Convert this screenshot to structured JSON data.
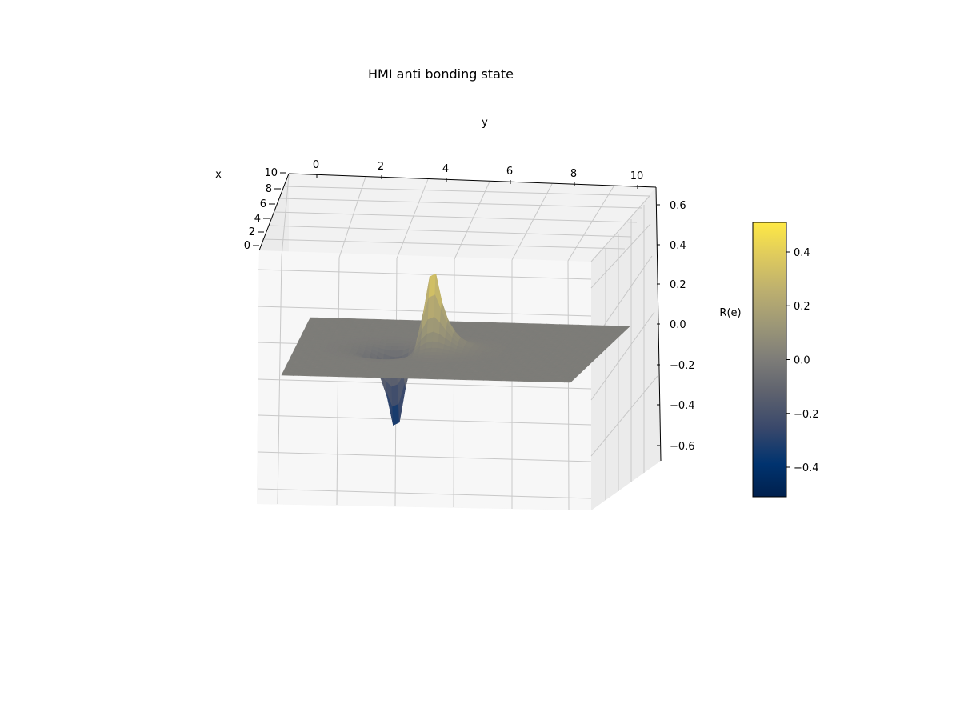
{
  "chart_data": {
    "type": "surface3d",
    "title": "HMI anti bonding state",
    "xlabel": "x",
    "ylabel": "y",
    "zlabel": "",
    "colorbar_label": "R(e)",
    "colormap": "cividis",
    "xlim": [
      0,
      10
    ],
    "ylim": [
      0,
      10
    ],
    "zlim": [
      -0.65,
      0.65
    ],
    "x_ticks": [
      "0",
      "2",
      "4",
      "6",
      "8",
      "10"
    ],
    "y_ticks": [
      "0",
      "2",
      "4",
      "6",
      "8",
      "10"
    ],
    "z_ticks": [
      "0.6",
      "0.4",
      "0.2",
      "0.0",
      "−0.2",
      "−0.4",
      "−0.6"
    ],
    "colorbar_range": [
      -0.51,
      0.51
    ],
    "colorbar_ticks": [
      "0.4",
      "0.2",
      "0.0",
      "−0.2",
      "−0.4"
    ],
    "peaks": [
      {
        "x": 5,
        "y": 4.5,
        "z": 0.5
      },
      {
        "x": 5,
        "y": 3.3,
        "z": -0.5
      }
    ],
    "grid": true
  }
}
